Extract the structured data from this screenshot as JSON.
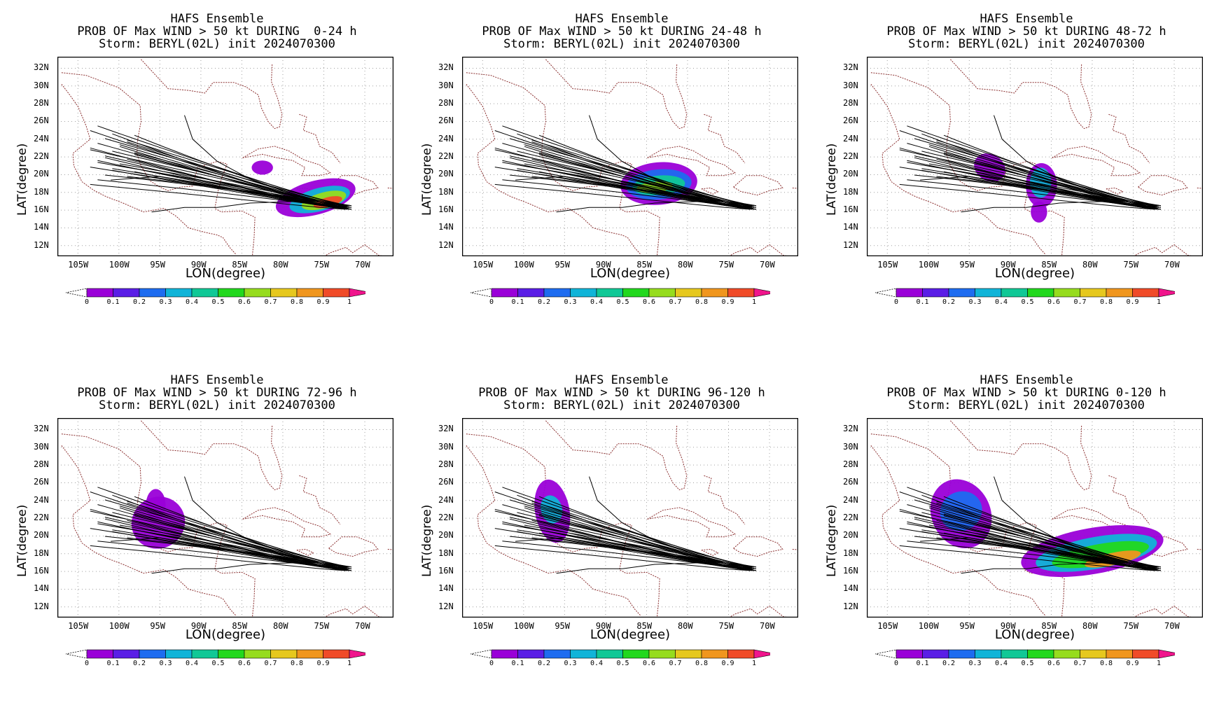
{
  "header": "HAFS Ensemble",
  "storm_line": "Storm: BERYL(02L) init 2024070300",
  "xlabel": "LON(degree)",
  "ylabel": "LAT(degree)",
  "lat_ticks": [
    "32N",
    "30N",
    "28N",
    "26N",
    "24N",
    "22N",
    "20N",
    "18N",
    "16N",
    "14N",
    "12N"
  ],
  "lat_values": [
    32,
    30,
    28,
    26,
    24,
    22,
    20,
    18,
    16,
    14,
    12
  ],
  "lon_ticks": [
    "105W",
    "100W",
    "95W",
    "90W",
    "85W",
    "80W",
    "75W",
    "70W"
  ],
  "lon_values": [
    -105,
    -100,
    -95,
    -90,
    -85,
    -80,
    -75,
    -70
  ],
  "map_extent": {
    "lon": [
      -107.5,
      -66.5
    ],
    "lat": [
      10.8,
      33.3
    ]
  },
  "colorbar": {
    "labels": [
      "0",
      "0.1",
      "0.2",
      "0.3",
      "0.4",
      "0.5",
      "0.6",
      "0.7",
      "0.8",
      "0.9",
      "1"
    ],
    "colors": [
      "#9a00d8",
      "#5a1ee6",
      "#1e6cf0",
      "#10b4d8",
      "#10c896",
      "#22d81e",
      "#96dc1e",
      "#e6c81e",
      "#f0961e",
      "#f04b28"
    ],
    "under_color": "#ffffff",
    "over_color": "#f0148c"
  },
  "panels": [
    {
      "id": "p1",
      "title_line2": "PROB OF Max WIND > 50 kt DURING  0-24 h"
    },
    {
      "id": "p2",
      "title_line2": "PROB OF Max WIND > 50 kt DURING 24-48 h"
    },
    {
      "id": "p3",
      "title_line2": "PROB OF Max WIND > 50 kt DURING 48-72 h"
    },
    {
      "id": "p4",
      "title_line2": "PROB OF Max WIND > 50 kt DURING 72-96 h"
    },
    {
      "id": "p5",
      "title_line2": "PROB OF Max WIND > 50 kt DURING 96-120 h"
    },
    {
      "id": "p6",
      "title_line2": "PROB OF Max WIND > 50 kt DURING 0-120 h"
    }
  ]
}
